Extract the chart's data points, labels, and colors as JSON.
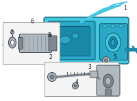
{
  "bg_color": "#ffffff",
  "part_color": "#45c8e0",
  "part_mid": "#2aa8c8",
  "part_dark": "#1a88a8",
  "part_outline": "#0a5068",
  "gray_part": "#b0b8c0",
  "gray_dark": "#808890",
  "gray_outline": "#404850",
  "box_bg": "#f5f5f5",
  "box_edge": "#999999",
  "label_color": "#000000",
  "figsize": [
    2.0,
    1.47
  ],
  "dpi": 100
}
